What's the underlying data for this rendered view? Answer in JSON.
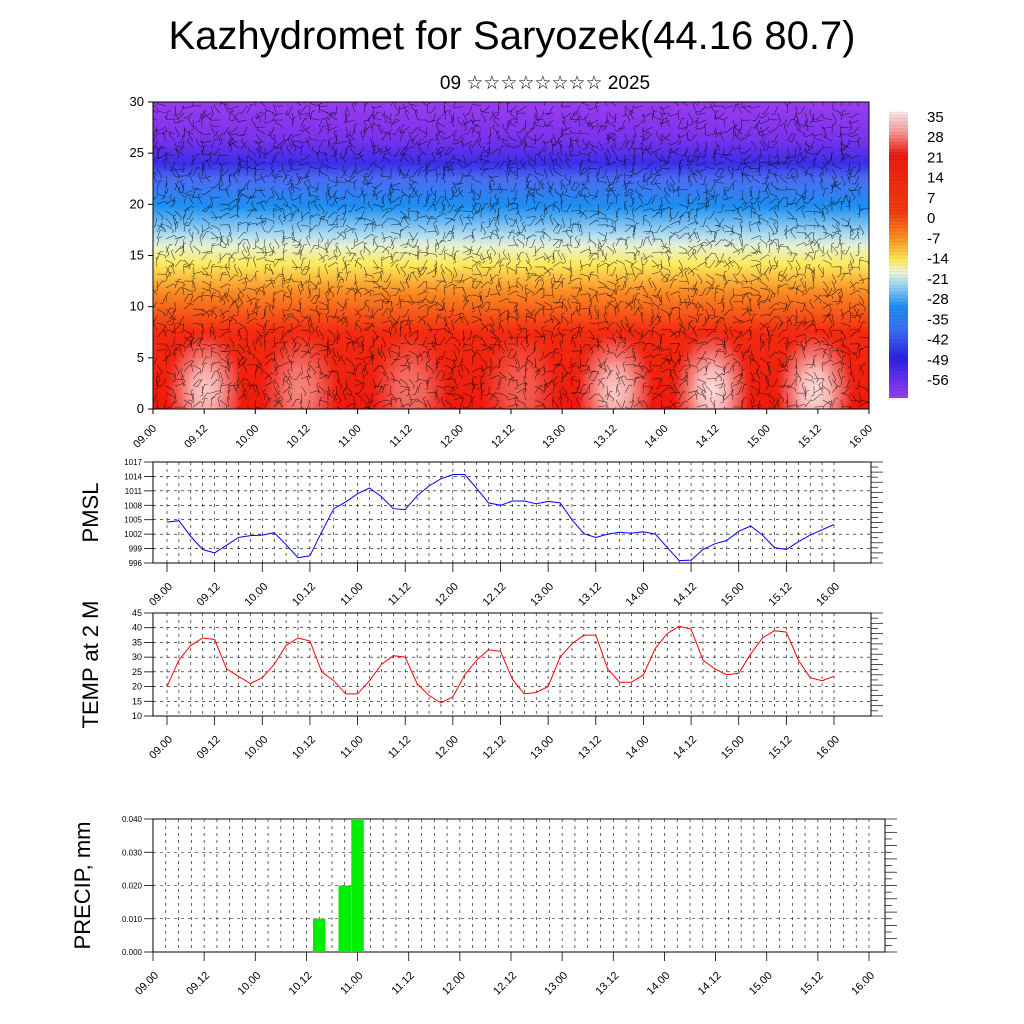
{
  "header": {
    "title": "Kazhydromet for Saryozek(44.16 80.7)",
    "subtitle": "09 ☆☆☆☆☆☆☆☆ 2025"
  },
  "chart_data": [
    {
      "type": "heatmap",
      "title": "",
      "ylim": [
        0,
        30
      ],
      "yticks": [
        "0",
        "5",
        "10",
        "15",
        "20",
        "25",
        "30"
      ],
      "xticks": [
        "09.00",
        "09.12",
        "10.00",
        "10.12",
        "11.00",
        "11.12",
        "12.00",
        "12.12",
        "13.00",
        "13.12",
        "14.00",
        "14.12",
        "15.00",
        "15.12",
        "16.00"
      ],
      "colorbar_labels": [
        "35",
        "28",
        "21",
        "14",
        "7",
        "0",
        "-7",
        "-14",
        "-21",
        "-28",
        "-35",
        "-42",
        "-49",
        "-56"
      ],
      "overlay": "wind barbs",
      "colors": {
        "warm": "#ee1b0e",
        "hot": "#f9c0c0",
        "yellow": "#fde95a",
        "light_blue": "#b0dcf2",
        "blue": "#1a7ff0",
        "purple": "#8f2ee8"
      }
    },
    {
      "type": "line",
      "ylabel": "PMSL",
      "ylim": [
        996,
        1017
      ],
      "yticks": [
        "996",
        "999",
        "1002",
        "1005",
        "1008",
        "1011",
        "1014",
        "1017"
      ],
      "xticks": [
        "09.00",
        "09.12",
        "10.00",
        "10.12",
        "11.00",
        "11.12",
        "12.00",
        "12.12",
        "13.00",
        "13.12",
        "14.00",
        "14.12",
        "15.00",
        "15.12",
        "16.00"
      ],
      "x_step_hours": 3,
      "color": "#0000ff",
      "values": [
        1004.5,
        1004.8,
        1001.5,
        998.8,
        998.1,
        999.7,
        1001.3,
        1001.7,
        1001.8,
        1002.3,
        999.8,
        997.1,
        997.5,
        1002.5,
        1007.3,
        1008.7,
        1010.4,
        1011.6,
        1009.8,
        1007.3,
        1007.1,
        1010.0,
        1012.0,
        1013.5,
        1014.4,
        1014.4,
        1011.5,
        1008.5,
        1008.0,
        1008.9,
        1008.9,
        1008.3,
        1008.8,
        1008.5,
        1005.0,
        1002.1,
        1001.3,
        1002.0,
        1002.4,
        1002.2,
        1002.5,
        1002.0,
        999.2,
        996.5,
        996.6,
        998.8,
        1000.0,
        1000.7,
        1002.6,
        1003.7,
        1001.8,
        999.2,
        998.8,
        1000.4,
        1001.8,
        1002.9,
        1004.0
      ]
    },
    {
      "type": "line",
      "ylabel": "TEMP at 2 M",
      "ylim": [
        10,
        45
      ],
      "yticks": [
        "10",
        "15",
        "20",
        "25",
        "30",
        "35",
        "40",
        "45"
      ],
      "xticks": [
        "09.00",
        "09.12",
        "10.00",
        "10.12",
        "11.00",
        "11.12",
        "12.00",
        "12.12",
        "13.00",
        "13.12",
        "14.00",
        "14.12",
        "15.00",
        "15.12",
        "16.00"
      ],
      "x_step_hours": 3,
      "color": "#ff0000",
      "values": [
        20.0,
        29.0,
        34.0,
        36.5,
        36.0,
        26.0,
        23.5,
        21.0,
        23.0,
        27.5,
        34.0,
        36.5,
        35.5,
        25.0,
        22.0,
        17.5,
        17.5,
        22.0,
        27.5,
        30.5,
        30.0,
        21.0,
        17.0,
        14.5,
        16.5,
        24.0,
        29.0,
        32.5,
        32.0,
        22.5,
        17.5,
        18.0,
        20.0,
        30.0,
        34.5,
        37.5,
        37.5,
        26.0,
        21.5,
        21.5,
        24.0,
        33.0,
        38.0,
        40.5,
        39.5,
        29.0,
        26.0,
        24.0,
        24.5,
        31.0,
        36.5,
        39.0,
        38.5,
        29.0,
        23.0,
        22.0,
        23.5
      ]
    },
    {
      "type": "bar",
      "ylabel": "PRECIP, mm",
      "ylim": [
        0,
        0.04
      ],
      "yticks": [
        "0.000",
        "0.010",
        "0.020",
        "0.030",
        "0.040"
      ],
      "xticks": [
        "09.00",
        "09.12",
        "10.00",
        "10.12",
        "11.00",
        "11.12",
        "12.00",
        "12.12",
        "13.00",
        "13.12",
        "14.00",
        "14.12",
        "15.00",
        "15.12",
        "16.00"
      ],
      "color": "#00ee00",
      "bars": [
        {
          "x": "10.15",
          "value": 0.01
        },
        {
          "x": "10.21",
          "value": 0.02
        },
        {
          "x": "11.00",
          "value": 0.04
        }
      ]
    }
  ]
}
